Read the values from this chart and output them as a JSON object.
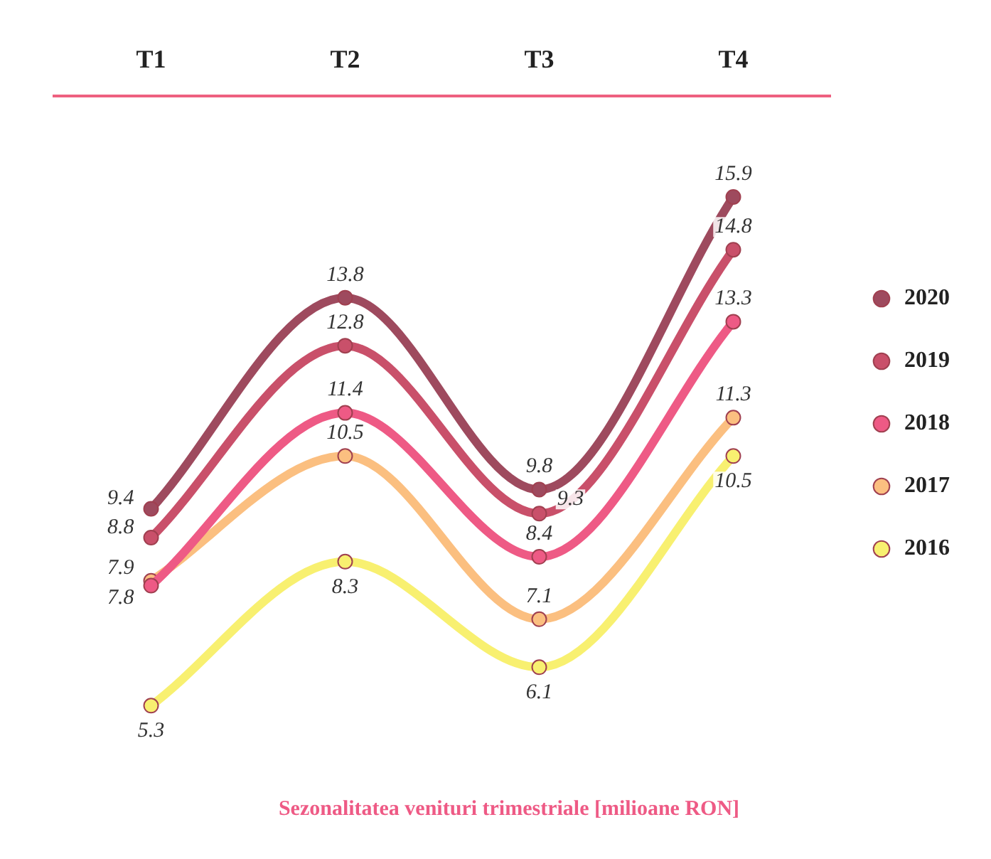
{
  "chart_data": {
    "type": "line",
    "title": "Sezonalitatea venituri trimestriale [milioane RON]",
    "categories": [
      "T1",
      "T2",
      "T3",
      "T4"
    ],
    "series": [
      {
        "name": "2020",
        "color": "#9e4a5e",
        "values": [
          9.4,
          13.8,
          9.8,
          15.9
        ]
      },
      {
        "name": "2019",
        "color": "#c9506a",
        "values": [
          8.8,
          12.8,
          9.3,
          14.8
        ]
      },
      {
        "name": "2018",
        "color": "#ee5a85",
        "values": [
          7.8,
          11.4,
          8.4,
          13.3
        ]
      },
      {
        "name": "2017",
        "color": "#fbbf80",
        "values": [
          7.9,
          10.5,
          7.1,
          11.3
        ]
      },
      {
        "name": "2016",
        "color": "#f8f070",
        "values": [
          5.3,
          8.3,
          6.1,
          10.5
        ]
      }
    ],
    "data_labels": true,
    "legend": "right",
    "marker": "circle",
    "grid": false
  }
}
